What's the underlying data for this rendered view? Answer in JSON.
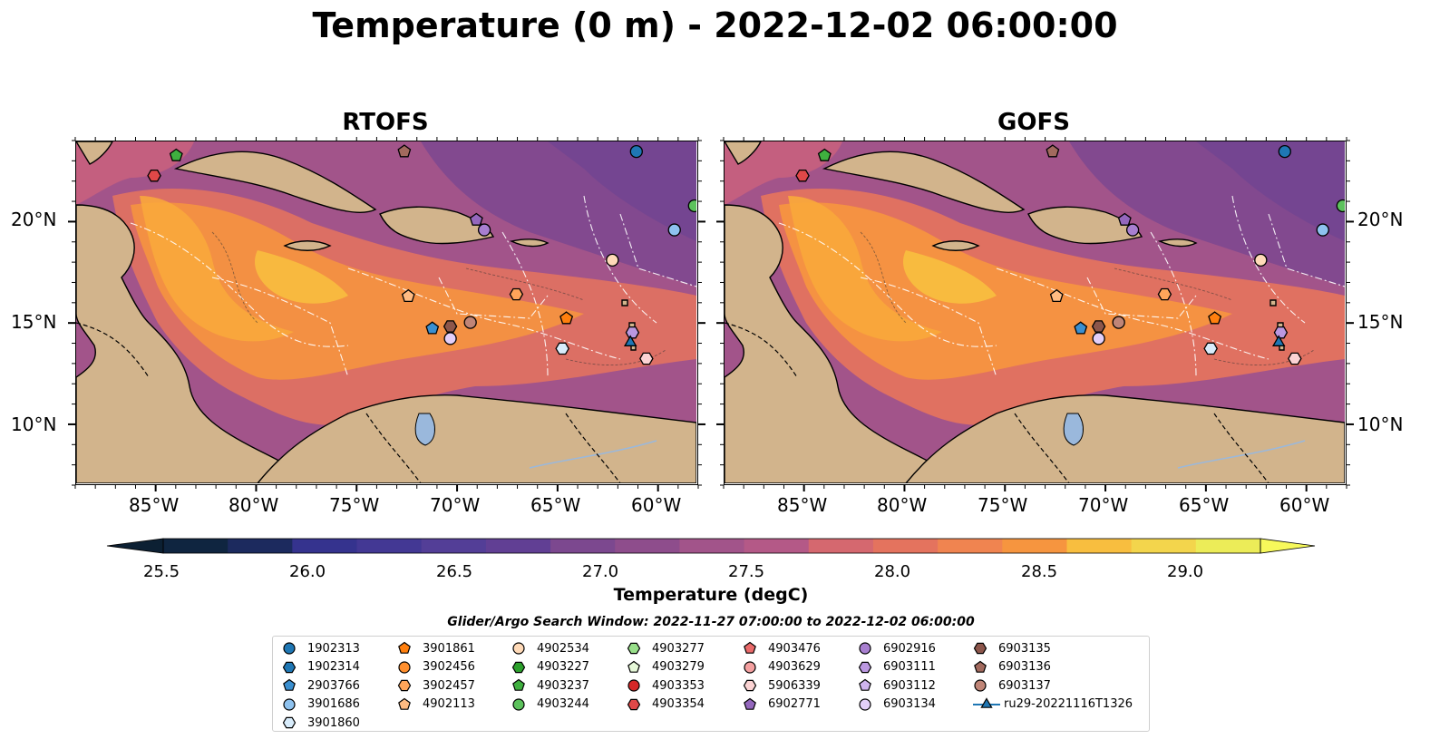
{
  "title": "Temperature (0 m) - 2022-12-02 06:00:00",
  "colors": {
    "land": "#d2b48c",
    "scale": [
      "#0f2540",
      "#1c2a5e",
      "#28307c",
      "#35338e",
      "#433894",
      "#533e97",
      "#613f94",
      "#6e4491",
      "#7c488f",
      "#8e4d8c",
      "#a2548a",
      "#b45987",
      "#c45f7f",
      "#d5686f",
      "#e4735e",
      "#f08450",
      "#f6953f",
      "#f9a83b",
      "#f8be3f",
      "#f3d54c",
      "#ecec58"
    ],
    "over": "#f7f95b",
    "under": "#0c2033"
  },
  "panels": [
    {
      "title": "RTOFS",
      "map_name": "rtofs"
    },
    {
      "title": "GOFS",
      "map_name": "gofs"
    }
  ],
  "chart_data": {
    "type": "heatmap",
    "title": "Temperature (0 m) - 2022-12-02 06:00:00",
    "region": {
      "lon": [
        -89,
        -58
      ],
      "lat": [
        7,
        24
      ]
    },
    "lon_ticks": [
      "85°W",
      "80°W",
      "75°W",
      "70°W",
      "65°W",
      "60°W"
    ],
    "lat_ticks": [
      "20°N",
      "15°N",
      "10°N"
    ],
    "colorbar": {
      "label": "Temperature (degC)",
      "range": [
        25.25,
        29.5
      ],
      "step": 0.25,
      "ticks": [
        "25.5",
        "26.0",
        "26.5",
        "27.0",
        "27.5",
        "28.0",
        "28.5",
        "29.0"
      ],
      "extend": "both"
    },
    "search_window": "Glider/Argo Search Window: 2022-11-27 07:00:00 to 2022-12-02 06:00:00",
    "markers": [
      {
        "id": "1902313",
        "marker": "circle",
        "color": "#1f77b4",
        "lon": -61.0,
        "lat": 23.5
      },
      {
        "id": "1902314",
        "marker": "hexagon",
        "color": "#1f77b4",
        "lon": null,
        "lat": null
      },
      {
        "id": "2903766",
        "marker": "pentagon",
        "color": "#3a8fd0",
        "lon": -71.2,
        "lat": 14.7
      },
      {
        "id": "3901686",
        "marker": "circle",
        "color": "#8ec2ef",
        "lon": -59.1,
        "lat": 19.6
      },
      {
        "id": "3901860",
        "marker": "hexagon",
        "color": "#d8ecfb",
        "lon": -64.7,
        "lat": 13.7
      },
      {
        "id": "3901861",
        "marker": "pentagon",
        "color": "#ff7f0e",
        "lon": -64.5,
        "lat": 15.2
      },
      {
        "id": "3902456",
        "marker": "circle",
        "color": "#ff8f2e",
        "lon": null,
        "lat": null
      },
      {
        "id": "3902457",
        "marker": "hexagon",
        "color": "#ffa55a",
        "lon": -67.0,
        "lat": 16.4
      },
      {
        "id": "4902113",
        "marker": "pentagon",
        "color": "#ffbb82",
        "lon": -72.4,
        "lat": 16.3
      },
      {
        "id": "4902534",
        "marker": "circle",
        "color": "#ffdab8",
        "lon": -62.2,
        "lat": 18.1
      },
      {
        "id": "4903227",
        "marker": "hexagon",
        "color": "#2ca02c",
        "lon": null,
        "lat": null
      },
      {
        "id": "4903237",
        "marker": "pentagon",
        "color": "#3fb03f",
        "lon": -84.0,
        "lat": 23.3
      },
      {
        "id": "4903244",
        "marker": "circle",
        "color": "#5cc25c",
        "lon": -58.1,
        "lat": 20.8
      },
      {
        "id": "4903277",
        "marker": "hexagon",
        "color": "#98df8a",
        "lon": null,
        "lat": null
      },
      {
        "id": "4903279",
        "marker": "pentagon",
        "color": "#e6f8d8",
        "lon": null,
        "lat": null
      },
      {
        "id": "4903353",
        "marker": "circle",
        "color": "#d62728",
        "lon": null,
        "lat": null
      },
      {
        "id": "4903354",
        "marker": "hexagon",
        "color": "#e04848",
        "lon": -85.1,
        "lat": 22.3
      },
      {
        "id": "4903476",
        "marker": "pentagon",
        "color": "#ea6a6a",
        "lon": null,
        "lat": null
      },
      {
        "id": "4903629",
        "marker": "circle",
        "color": "#f4a0a0",
        "lon": null,
        "lat": null
      },
      {
        "id": "5906339",
        "marker": "hexagon",
        "color": "#fbd3d3",
        "lon": -60.5,
        "lat": 13.2
      },
      {
        "id": "6902771",
        "marker": "pentagon",
        "color": "#9467bd",
        "lon": -69.0,
        "lat": 20.1
      },
      {
        "id": "6902916",
        "marker": "circle",
        "color": "#a87fd0",
        "lon": -68.6,
        "lat": 19.6
      },
      {
        "id": "6903111",
        "marker": "hexagon",
        "color": "#bb98e0",
        "lon": -61.2,
        "lat": 14.5
      },
      {
        "id": "6903112",
        "marker": "pentagon",
        "color": "#cfb4ee",
        "lon": null,
        "lat": null
      },
      {
        "id": "6903134",
        "marker": "circle",
        "color": "#e3cff8",
        "lon": -70.3,
        "lat": 14.2
      },
      {
        "id": "6903135",
        "marker": "hexagon",
        "color": "#8c564b",
        "lon": -70.3,
        "lat": 14.8
      },
      {
        "id": "6903136",
        "marker": "pentagon",
        "color": "#a26a5e",
        "lon": -72.6,
        "lat": 23.5
      },
      {
        "id": "6903137",
        "marker": "circle",
        "color": "#c08577",
        "lon": -69.3,
        "lat": 15.0
      },
      {
        "id": "ru29-20221116T1326",
        "marker": "triangle",
        "color": "#1f77b4",
        "lon": -61.3,
        "lat": 14.0
      }
    ]
  }
}
